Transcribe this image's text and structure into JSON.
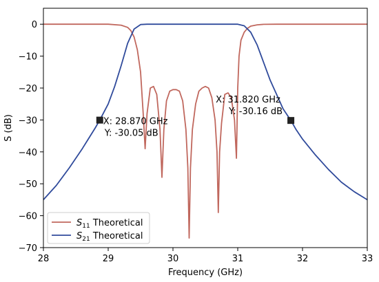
{
  "chart_data": {
    "type": "line",
    "title": "",
    "xlabel": "Frequency (GHz)",
    "ylabel": "S (dB)",
    "xlim": [
      28,
      33
    ],
    "ylim": [
      -70,
      5
    ],
    "xticks": [
      28,
      29,
      30,
      31,
      32,
      33
    ],
    "yticks": [
      0,
      -10,
      -20,
      -30,
      -40,
      -50,
      -60,
      -70
    ],
    "grid": false,
    "legend_position": "lower-left",
    "series": [
      {
        "name": "S11 Theoretical",
        "legend": {
          "prefix": "S",
          "sub": "11",
          "suffix": " Theoretical"
        },
        "color": "#c0675d",
        "x": [
          28,
          29.0,
          29.2,
          29.3,
          29.35,
          29.4,
          29.45,
          29.5,
          29.54,
          29.57,
          29.6,
          29.65,
          29.7,
          29.75,
          29.8,
          29.83,
          29.86,
          29.9,
          29.95,
          30.0,
          30.05,
          30.1,
          30.15,
          30.2,
          30.23,
          30.25,
          30.27,
          30.3,
          30.35,
          30.4,
          30.45,
          30.5,
          30.55,
          30.6,
          30.65,
          30.68,
          30.7,
          30.72,
          30.75,
          30.8,
          30.85,
          30.9,
          30.95,
          30.98,
          31.0,
          31.02,
          31.05,
          31.1,
          31.15,
          31.2,
          31.3,
          31.4,
          31.6,
          32.0,
          33.0
        ],
        "y": [
          0,
          0,
          -0.3,
          -1,
          -2,
          -4,
          -8,
          -15,
          -28,
          -39,
          -28,
          -20,
          -19.5,
          -22,
          -33,
          -48,
          -33,
          -24,
          -21,
          -20.5,
          -20.5,
          -21,
          -24,
          -33,
          -45,
          -67,
          -45,
          -33,
          -25,
          -21,
          -20,
          -19.5,
          -20,
          -23,
          -30,
          -40,
          -59,
          -40,
          -31,
          -22,
          -21.5,
          -23,
          -30,
          -42,
          -20,
          -10,
          -5,
          -2.5,
          -1.3,
          -0.6,
          -0.2,
          -0.05,
          0,
          0,
          0
        ]
      },
      {
        "name": "S21 Theoretical",
        "legend": {
          "prefix": "S",
          "sub": "21",
          "suffix": " Theoretical"
        },
        "color": "#2f4a9b",
        "x": [
          28,
          28.2,
          28.4,
          28.6,
          28.8,
          28.87,
          29.0,
          29.1,
          29.2,
          29.3,
          29.4,
          29.5,
          29.6,
          29.8,
          30.0,
          30.5,
          31.0,
          31.1,
          31.2,
          31.3,
          31.4,
          31.5,
          31.6,
          31.7,
          31.82,
          31.9,
          32.0,
          32.2,
          32.4,
          32.6,
          32.8,
          33.0
        ],
        "y": [
          -55,
          -50.5,
          -45,
          -39,
          -32.5,
          -30.05,
          -25,
          -19.5,
          -13,
          -6,
          -1.5,
          -0.1,
          0,
          0,
          0,
          0,
          0,
          -0.5,
          -2.5,
          -6.5,
          -12,
          -17.5,
          -22,
          -26.5,
          -30.16,
          -33,
          -36,
          -41,
          -45.5,
          -49.5,
          -52.5,
          -55
        ]
      }
    ],
    "markers": [
      {
        "x": 28.87,
        "y": -30.05,
        "label_x": "X: 28.870 GHz",
        "label_y": "Y: -30.05 dB"
      },
      {
        "x": 31.82,
        "y": -30.16,
        "label_x": "X: 31.820 GHz",
        "label_y": "Y: -30.16 dB"
      }
    ]
  }
}
